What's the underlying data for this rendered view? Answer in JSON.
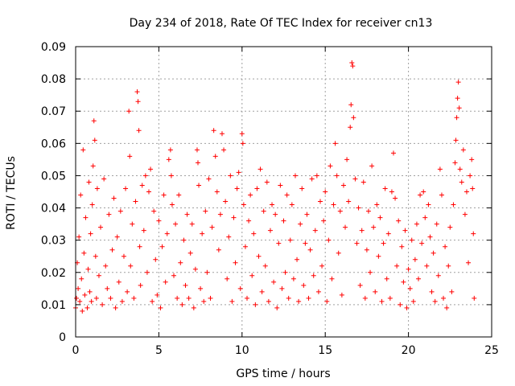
{
  "chart_data": {
    "type": "scatter",
    "title": "Day 234 of 2018, Rate Of TEC Index for receiver cn13",
    "xlabel": "GPS time / hours",
    "ylabel": "ROTI / TECUs",
    "xlim": [
      0,
      25
    ],
    "ylim": [
      0,
      0.09
    ],
    "xticks": [
      "0",
      "5",
      "10",
      "15",
      "20",
      "25"
    ],
    "yticks": [
      "0",
      "0.01",
      "0.02",
      "0.03",
      "0.04",
      "0.05",
      "0.06",
      "0.07",
      "0.08",
      "0.09"
    ],
    "grid": true,
    "marker": "+",
    "color": "#ff0000",
    "series": [
      {
        "name": "ROTI",
        "points": [
          [
            0.0,
            0.009
          ],
          [
            0.05,
            0.012
          ],
          [
            0.1,
            0.023
          ],
          [
            0.15,
            0.015
          ],
          [
            0.2,
            0.031
          ],
          [
            0.25,
            0.011
          ],
          [
            0.3,
            0.044
          ],
          [
            0.35,
            0.018
          ],
          [
            0.4,
            0.008
          ],
          [
            0.45,
            0.058
          ],
          [
            0.5,
            0.026
          ],
          [
            0.55,
            0.013
          ],
          [
            0.6,
            0.037
          ],
          [
            0.7,
            0.009
          ],
          [
            0.75,
            0.021
          ],
          [
            0.8,
            0.048
          ],
          [
            0.85,
            0.014
          ],
          [
            0.9,
            0.032
          ],
          [
            0.95,
            0.011
          ],
          [
            1.0,
            0.041
          ],
          [
            1.05,
            0.053
          ],
          [
            1.1,
            0.067
          ],
          [
            1.15,
            0.061
          ],
          [
            1.2,
            0.025
          ],
          [
            1.25,
            0.012
          ],
          [
            1.3,
            0.046
          ],
          [
            1.4,
            0.019
          ],
          [
            1.5,
            0.034
          ],
          [
            1.6,
            0.01
          ],
          [
            1.7,
            0.049
          ],
          [
            1.8,
            0.022
          ],
          [
            1.9,
            0.015
          ],
          [
            2.0,
            0.038
          ],
          [
            2.1,
            0.012
          ],
          [
            2.2,
            0.027
          ],
          [
            2.3,
            0.043
          ],
          [
            2.4,
            0.009
          ],
          [
            2.5,
            0.031
          ],
          [
            2.6,
            0.017
          ],
          [
            2.7,
            0.039
          ],
          [
            2.8,
            0.011
          ],
          [
            2.9,
            0.025
          ],
          [
            3.0,
            0.046
          ],
          [
            3.1,
            0.014
          ],
          [
            3.2,
            0.07
          ],
          [
            3.25,
            0.056
          ],
          [
            3.3,
            0.022
          ],
          [
            3.4,
            0.035
          ],
          [
            3.5,
            0.012
          ],
          [
            3.6,
            0.042
          ],
          [
            3.7,
            0.076
          ],
          [
            3.75,
            0.073
          ],
          [
            3.8,
            0.064
          ],
          [
            3.85,
            0.028
          ],
          [
            3.9,
            0.016
          ],
          [
            4.0,
            0.047
          ],
          [
            4.1,
            0.033
          ],
          [
            4.2,
            0.05
          ],
          [
            4.3,
            0.02
          ],
          [
            4.4,
            0.045
          ],
          [
            4.5,
            0.052
          ],
          [
            4.6,
            0.011
          ],
          [
            4.7,
            0.039
          ],
          [
            4.8,
            0.024
          ],
          [
            4.9,
            0.013
          ],
          [
            5.0,
            0.036
          ],
          [
            5.1,
            0.009
          ],
          [
            5.2,
            0.028
          ],
          [
            5.3,
            0.044
          ],
          [
            5.4,
            0.017
          ],
          [
            5.5,
            0.032
          ],
          [
            5.6,
            0.055
          ],
          [
            5.7,
            0.058
          ],
          [
            5.75,
            0.05
          ],
          [
            5.8,
            0.041
          ],
          [
            5.9,
            0.019
          ],
          [
            6.0,
            0.035
          ],
          [
            6.1,
            0.012
          ],
          [
            6.2,
            0.044
          ],
          [
            6.3,
            0.023
          ],
          [
            6.4,
            0.01
          ],
          [
            6.5,
            0.03
          ],
          [
            6.6,
            0.016
          ],
          [
            6.7,
            0.038
          ],
          [
            6.8,
            0.012
          ],
          [
            6.9,
            0.026
          ],
          [
            7.0,
            0.035
          ],
          [
            7.1,
            0.009
          ],
          [
            7.2,
            0.021
          ],
          [
            7.3,
            0.058
          ],
          [
            7.35,
            0.054
          ],
          [
            7.4,
            0.047
          ],
          [
            7.5,
            0.015
          ],
          [
            7.6,
            0.032
          ],
          [
            7.7,
            0.011
          ],
          [
            7.8,
            0.039
          ],
          [
            7.9,
            0.02
          ],
          [
            8.0,
            0.049
          ],
          [
            8.1,
            0.012
          ],
          [
            8.2,
            0.034
          ],
          [
            8.3,
            0.064
          ],
          [
            8.4,
            0.056
          ],
          [
            8.5,
            0.045
          ],
          [
            8.6,
            0.027
          ],
          [
            8.7,
            0.038
          ],
          [
            8.8,
            0.063
          ],
          [
            8.9,
            0.058
          ],
          [
            9.0,
            0.042
          ],
          [
            9.1,
            0.018
          ],
          [
            9.2,
            0.031
          ],
          [
            9.3,
            0.05
          ],
          [
            9.4,
            0.011
          ],
          [
            9.5,
            0.037
          ],
          [
            9.6,
            0.023
          ],
          [
            9.7,
            0.046
          ],
          [
            9.8,
            0.051
          ],
          [
            9.9,
            0.015
          ],
          [
            10.0,
            0.063
          ],
          [
            10.05,
            0.06
          ],
          [
            10.1,
            0.041
          ],
          [
            10.2,
            0.028
          ],
          [
            10.3,
            0.012
          ],
          [
            10.4,
            0.036
          ],
          [
            10.5,
            0.044
          ],
          [
            10.6,
            0.019
          ],
          [
            10.7,
            0.032
          ],
          [
            10.8,
            0.01
          ],
          [
            10.9,
            0.046
          ],
          [
            11.0,
            0.025
          ],
          [
            11.1,
            0.052
          ],
          [
            11.2,
            0.014
          ],
          [
            11.3,
            0.039
          ],
          [
            11.4,
            0.022
          ],
          [
            11.5,
            0.048
          ],
          [
            11.6,
            0.011
          ],
          [
            11.7,
            0.033
          ],
          [
            11.8,
            0.041
          ],
          [
            11.9,
            0.017
          ],
          [
            12.0,
            0.038
          ],
          [
            12.1,
            0.009
          ],
          [
            12.2,
            0.029
          ],
          [
            12.3,
            0.047
          ],
          [
            12.4,
            0.015
          ],
          [
            12.5,
            0.036
          ],
          [
            12.6,
            0.02
          ],
          [
            12.7,
            0.044
          ],
          [
            12.8,
            0.012
          ],
          [
            12.9,
            0.03
          ],
          [
            13.0,
            0.041
          ],
          [
            13.1,
            0.018
          ],
          [
            13.2,
            0.05
          ],
          [
            13.3,
            0.024
          ],
          [
            13.4,
            0.011
          ],
          [
            13.5,
            0.035
          ],
          [
            13.6,
            0.046
          ],
          [
            13.7,
            0.016
          ],
          [
            13.8,
            0.029
          ],
          [
            13.9,
            0.038
          ],
          [
            14.0,
            0.012
          ],
          [
            14.1,
            0.027
          ],
          [
            14.2,
            0.049
          ],
          [
            14.3,
            0.019
          ],
          [
            14.4,
            0.033
          ],
          [
            14.5,
            0.05
          ],
          [
            14.6,
            0.014
          ],
          [
            14.7,
            0.042
          ],
          [
            14.8,
            0.022
          ],
          [
            14.9,
            0.036
          ],
          [
            15.0,
            0.045
          ],
          [
            15.1,
            0.011
          ],
          [
            15.2,
            0.03
          ],
          [
            15.3,
            0.053
          ],
          [
            15.4,
            0.018
          ],
          [
            15.5,
            0.041
          ],
          [
            15.6,
            0.06
          ],
          [
            15.7,
            0.05
          ],
          [
            15.8,
            0.026
          ],
          [
            15.9,
            0.039
          ],
          [
            16.0,
            0.013
          ],
          [
            16.1,
            0.047
          ],
          [
            16.2,
            0.034
          ],
          [
            16.3,
            0.055
          ],
          [
            16.4,
            0.042
          ],
          [
            16.5,
            0.065
          ],
          [
            16.55,
            0.072
          ],
          [
            16.6,
            0.085
          ],
          [
            16.65,
            0.084
          ],
          [
            16.7,
            0.068
          ],
          [
            16.8,
            0.049
          ],
          [
            16.9,
            0.029
          ],
          [
            17.0,
            0.04
          ],
          [
            17.1,
            0.016
          ],
          [
            17.2,
            0.033
          ],
          [
            17.3,
            0.048
          ],
          [
            17.4,
            0.012
          ],
          [
            17.5,
            0.027
          ],
          [
            17.6,
            0.039
          ],
          [
            17.7,
            0.02
          ],
          [
            17.8,
            0.053
          ],
          [
            17.9,
            0.034
          ],
          [
            18.0,
            0.014
          ],
          [
            18.1,
            0.041
          ],
          [
            18.2,
            0.025
          ],
          [
            18.3,
            0.037
          ],
          [
            18.4,
            0.011
          ],
          [
            18.5,
            0.029
          ],
          [
            18.6,
            0.046
          ],
          [
            18.7,
            0.018
          ],
          [
            18.8,
            0.032
          ],
          [
            18.9,
            0.012
          ],
          [
            19.0,
            0.045
          ],
          [
            19.1,
            0.057
          ],
          [
            19.2,
            0.043
          ],
          [
            19.3,
            0.022
          ],
          [
            19.4,
            0.036
          ],
          [
            19.5,
            0.01
          ],
          [
            19.6,
            0.028
          ],
          [
            19.7,
            0.017
          ],
          [
            19.8,
            0.033
          ],
          [
            19.9,
            0.009
          ],
          [
            20.0,
            0.021
          ],
          [
            20.1,
            0.015
          ],
          [
            20.2,
            0.03
          ],
          [
            20.3,
            0.011
          ],
          [
            20.4,
            0.024
          ],
          [
            20.5,
            0.035
          ],
          [
            20.6,
            0.018
          ],
          [
            20.7,
            0.044
          ],
          [
            20.8,
            0.029
          ],
          [
            20.9,
            0.045
          ],
          [
            21.0,
            0.037
          ],
          [
            21.1,
            0.022
          ],
          [
            21.2,
            0.041
          ],
          [
            21.3,
            0.031
          ],
          [
            21.4,
            0.014
          ],
          [
            21.5,
            0.026
          ],
          [
            21.6,
            0.011
          ],
          [
            21.7,
            0.035
          ],
          [
            21.8,
            0.019
          ],
          [
            21.9,
            0.052
          ],
          [
            22.0,
            0.044
          ],
          [
            22.1,
            0.012
          ],
          [
            22.2,
            0.028
          ],
          [
            22.3,
            0.009
          ],
          [
            22.4,
            0.022
          ],
          [
            22.5,
            0.034
          ],
          [
            22.6,
            0.014
          ],
          [
            22.7,
            0.041
          ],
          [
            22.8,
            0.054
          ],
          [
            22.85,
            0.061
          ],
          [
            22.9,
            0.068
          ],
          [
            22.95,
            0.074
          ],
          [
            23.0,
            0.079
          ],
          [
            23.05,
            0.071
          ],
          [
            23.1,
            0.052
          ],
          [
            23.2,
            0.048
          ],
          [
            23.3,
            0.058
          ],
          [
            23.4,
            0.038
          ],
          [
            23.5,
            0.045
          ],
          [
            23.6,
            0.023
          ],
          [
            23.7,
            0.05
          ],
          [
            23.8,
            0.055
          ],
          [
            23.85,
            0.046
          ],
          [
            23.9,
            0.032
          ],
          [
            23.95,
            0.012
          ]
        ]
      }
    ]
  }
}
